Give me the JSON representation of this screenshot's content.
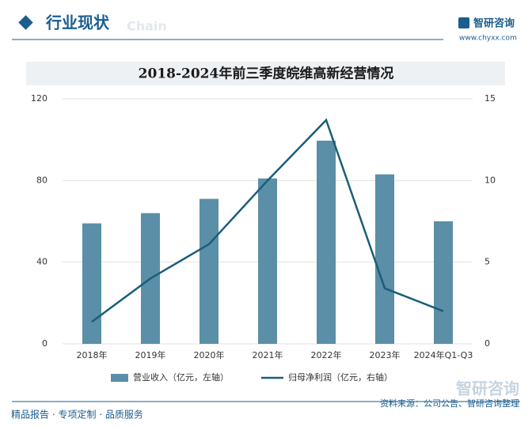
{
  "header": {
    "title": "行业现状",
    "subtitle": "Chain",
    "brand": "智研咨询",
    "url": "www.chyxx.com"
  },
  "chart_data": {
    "type": "bar_line",
    "title": "2018-2024年前三季度皖维高新经营情况",
    "categories": [
      "2018年",
      "2019年",
      "2020年",
      "2021年",
      "2022年",
      "2023年",
      "2024年Q1-Q3"
    ],
    "series": [
      {
        "name": "营业收入（亿元，左轴）",
        "type": "bar",
        "color": "#5a8fa7",
        "values": [
          59,
          64,
          71,
          81,
          99.5,
          83,
          60
        ]
      },
      {
        "name": "归母净利润（亿元，右轴）",
        "type": "line",
        "axis": "y2",
        "color": "#1b5d7a",
        "values": [
          1.35,
          4.0,
          6.1,
          10.0,
          13.7,
          3.4,
          2.0
        ]
      }
    ],
    "ylim": [
      0,
      120
    ],
    "yticks": [
      0,
      40,
      80,
      120
    ],
    "y2lim": [
      0,
      15
    ],
    "y2ticks": [
      0,
      5,
      10,
      15
    ],
    "grid": true
  },
  "footer": {
    "source": "资料来源：公司公告、智研咨询整理",
    "slogan": "精品报告 · 专项定制 · 品质服务",
    "brand": "智研咨询"
  }
}
